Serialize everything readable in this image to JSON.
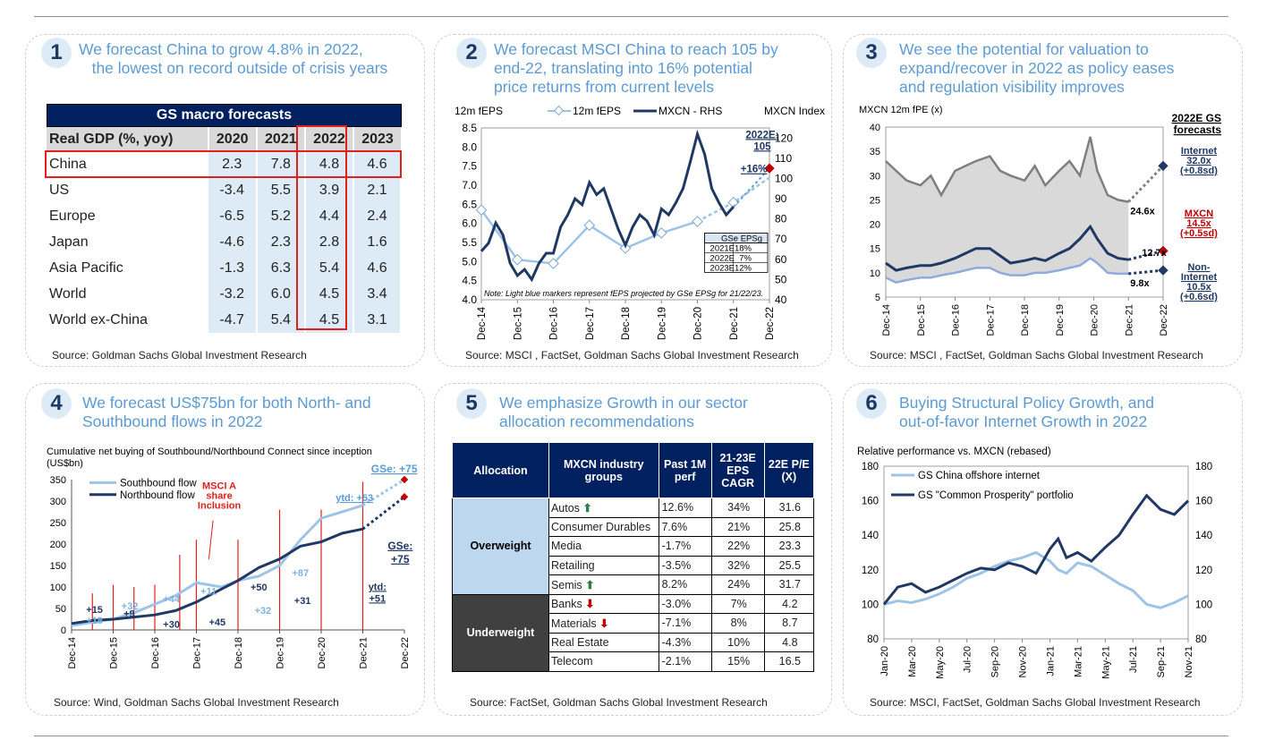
{
  "panels": [
    {
      "num": "1",
      "title": "We forecast China to grow 4.8% in 2022,\n   the lowest on record outside of crisis years",
      "source": "Source: Goldman Sachs Global Investment Research"
    },
    {
      "num": "2",
      "title": "We forecast MSCI China to reach 105 by\nend-22, translating into 16% potential\nprice returns from current levels",
      "source": "Source: MSCI , FactSet, Goldman Sachs Global Investment Research"
    },
    {
      "num": "3",
      "title": "We see the potential for valuation to\nexpand/recover in 2022 as policy eases\nand regulation visibility improves",
      "source": "Source: MSCI , FactSet, Goldman Sachs Global Investment Research"
    },
    {
      "num": "4",
      "title": "We forecast US$75bn for both North- and\nSouthbound flows in 2022",
      "source": "Source: Wind, Goldman Sachs Global Investment Research"
    },
    {
      "num": "5",
      "title": "We emphasize Growth in our sector\nallocation recommendations",
      "source": "Source: FactSet, Goldman Sachs Global Investment Research"
    },
    {
      "num": "6",
      "title": "Buying Structural Policy Growth, and\nout-of-favor Internet Growth in 2022",
      "source": "Source: MSCI, FactSet, Goldman Sachs Global Investment Research"
    }
  ],
  "macro": {
    "title": "GS macro forecasts",
    "header": [
      "Real GDP (%, yoy)",
      "2020",
      "2021",
      "2022",
      "2023"
    ],
    "rows": [
      [
        "China",
        "2.3",
        "7.8",
        "4.8",
        "4.6"
      ],
      [
        "US",
        "-3.4",
        "5.5",
        "3.9",
        "2.1"
      ],
      [
        "Europe",
        "-6.5",
        "5.2",
        "4.4",
        "2.4"
      ],
      [
        "Japan",
        "-4.6",
        "2.3",
        "2.8",
        "1.6"
      ],
      [
        "Asia Pacific",
        "-1.3",
        "6.3",
        "5.4",
        "4.6"
      ],
      [
        "World",
        "-3.2",
        "6.0",
        "4.5",
        "3.4"
      ],
      [
        "World ex-China",
        "-4.7",
        "5.4",
        "4.5",
        "3.1"
      ]
    ]
  },
  "sector": {
    "headers": [
      "Allocation",
      "MXCN industry groups",
      "Past 1M perf",
      "21-23E EPS CAGR",
      "22E P/E (X)"
    ],
    "overweight_label": "Overweight",
    "underweight_label": "Underweight",
    "overweight": [
      {
        "name": "Autos",
        "arrow": "up",
        "perf": "12.6%",
        "cagr": "34%",
        "pe": "31.6"
      },
      {
        "name": "Consumer Durables",
        "arrow": "",
        "perf": "7.6%",
        "cagr": "21%",
        "pe": "25.8"
      },
      {
        "name": "Media",
        "arrow": "",
        "perf": "-1.7%",
        "cagr": "22%",
        "pe": "23.3"
      },
      {
        "name": "Retailing",
        "arrow": "",
        "perf": "-3.5%",
        "cagr": "32%",
        "pe": "25.5"
      },
      {
        "name": "Semis",
        "arrow": "up",
        "perf": "8.2%",
        "cagr": "24%",
        "pe": "31.7"
      }
    ],
    "underweight": [
      {
        "name": "Banks",
        "arrow": "down",
        "perf": "-3.0%",
        "cagr": "7%",
        "pe": "4.2"
      },
      {
        "name": "Materials",
        "arrow": "down",
        "perf": "-7.1%",
        "cagr": "8%",
        "pe": "8.7"
      },
      {
        "name": "Real Estate",
        "arrow": "",
        "perf": "-4.3%",
        "cagr": "10%",
        "pe": "4.8"
      },
      {
        "name": "Telecom",
        "arrow": "",
        "perf": "-2.1%",
        "cagr": "15%",
        "pe": "16.5"
      }
    ]
  },
  "chart_data": [
    {
      "id": "chart2",
      "type": "line",
      "x_ticks": [
        "Dec-14",
        "Dec-15",
        "Dec-16",
        "Dec-17",
        "Dec-18",
        "Dec-19",
        "Dec-20",
        "Dec-21",
        "Dec-22"
      ],
      "ylabel_left": "12m fEPS",
      "ylabel_right": "MXCN Index",
      "ylim_left": [
        4.0,
        8.5
      ],
      "yticks_left": [
        "4.0",
        "4.5",
        "5.0",
        "5.5",
        "6.0",
        "6.5",
        "7.0",
        "7.5",
        "8.0",
        "8.5"
      ],
      "ylim_right": [
        40,
        125
      ],
      "yticks_right": [
        "40",
        "50",
        "60",
        "70",
        "80",
        "90",
        "100",
        "110",
        "120"
      ],
      "series": [
        {
          "name": "12m fEPS",
          "color": "#9dc3e6",
          "axis": "left",
          "x": [
            0,
            1,
            2,
            3,
            4,
            5,
            6,
            7,
            8
          ],
          "values": [
            6.35,
            5.05,
            4.95,
            5.95,
            5.35,
            5.75,
            6.05,
            6.55,
            7.2
          ]
        },
        {
          "name": "MXCN - RHS",
          "color": "#1f3864",
          "axis": "right",
          "x": [
            0,
            0.2,
            0.4,
            0.6,
            0.8,
            1.0,
            1.2,
            1.4,
            1.6,
            1.8,
            2.0,
            2.2,
            2.4,
            2.6,
            2.8,
            3.0,
            3.2,
            3.4,
            3.6,
            3.8,
            4.0,
            4.2,
            4.4,
            4.6,
            4.8,
            5.0,
            5.2,
            5.4,
            5.6,
            5.8,
            6.0,
            6.2,
            6.4,
            6.6,
            6.8,
            7.0
          ],
          "values": [
            64,
            68,
            78,
            72,
            58,
            52,
            55,
            50,
            58,
            63,
            63,
            76,
            82,
            90,
            87,
            98,
            92,
            95,
            85,
            75,
            67,
            76,
            82,
            79,
            72,
            85,
            82,
            88,
            95,
            108,
            122,
            112,
            95,
            88,
            82,
            86
          ]
        }
      ],
      "projection": {
        "from": 86,
        "to": 105,
        "label_pct": "+16%",
        "label": "2022E:\n105"
      },
      "legend_table": {
        "header": "GSe EPSg",
        "rows": [
          [
            "2021E",
            "18%"
          ],
          [
            "2022E",
            "7%"
          ],
          [
            "2023E",
            "12%"
          ]
        ]
      },
      "note": "Note: Light blue markers represent fEPS projected by GSe EPSg for 21/22/23."
    },
    {
      "id": "chart3",
      "type": "area",
      "title": "MXCN 12m fPE (x)",
      "x_ticks": [
        "Dec-14",
        "Dec-15",
        "Dec-16",
        "Dec-17",
        "Dec-18",
        "Dec-19",
        "Dec-20",
        "Dec-21",
        "Dec-22"
      ],
      "ylim": [
        5,
        40
      ],
      "yticks": [
        "5",
        "10",
        "15",
        "20",
        "25",
        "30",
        "35",
        "40"
      ],
      "series": [
        {
          "name": "Internet",
          "color": "#7f7f7f",
          "x": [
            0,
            0.3,
            0.6,
            1.0,
            1.3,
            1.6,
            2.0,
            2.3,
            2.6,
            3.0,
            3.3,
            3.6,
            4.0,
            4.3,
            4.6,
            5.0,
            5.3,
            5.6,
            5.9,
            6.1,
            6.4,
            6.7,
            7.0
          ],
          "values": [
            33,
            31,
            29,
            28,
            30,
            26,
            31,
            32,
            33,
            34,
            31,
            30,
            29,
            32,
            28,
            31,
            33,
            30,
            38,
            31,
            26,
            25,
            24.6
          ]
        },
        {
          "name": "MXCN",
          "color": "#1f3864",
          "x": [
            0,
            0.3,
            0.6,
            1.0,
            1.3,
            1.6,
            2.0,
            2.3,
            2.6,
            3.0,
            3.3,
            3.6,
            4.0,
            4.3,
            4.6,
            5.0,
            5.3,
            5.6,
            5.9,
            6.1,
            6.4,
            6.7,
            7.0
          ],
          "values": [
            12,
            10.5,
            11,
            11.5,
            11.5,
            12,
            13,
            14,
            15,
            15,
            13.5,
            12,
            12.5,
            13,
            12.5,
            14,
            15,
            17,
            19.5,
            17,
            14,
            13,
            12.7
          ]
        },
        {
          "name": "Non-Internet",
          "color": "#8faadc",
          "x": [
            0,
            0.3,
            0.6,
            1.0,
            1.3,
            1.6,
            2.0,
            2.3,
            2.6,
            3.0,
            3.3,
            3.6,
            4.0,
            4.3,
            4.6,
            5.0,
            5.3,
            5.6,
            5.9,
            6.1,
            6.4,
            6.7,
            7.0
          ],
          "values": [
            9,
            8,
            8.5,
            9,
            9,
            9.5,
            10,
            10.5,
            11,
            11,
            10,
            9.5,
            9.5,
            10,
            10,
            10.5,
            11,
            11.5,
            13,
            12,
            10,
            9.8,
            9.8
          ]
        }
      ],
      "end_labels": [
        "24.6x",
        "12.7x",
        "9.8x"
      ],
      "forecast_title": "2022E GS\nforecasts",
      "forecasts": [
        {
          "name": "Internet",
          "value": "32.0x",
          "sd": "(+0.8sd)",
          "color": "#1f3864"
        },
        {
          "name": "MXCN",
          "value": "14.5x",
          "sd": "(+0.5sd)",
          "color": "#c00000"
        },
        {
          "name": "Non-\nInternet",
          "value": "10.5x",
          "sd": "(+0.6sd)",
          "color": "#1f3864"
        }
      ],
      "forecast_values": [
        32.0,
        14.5,
        10.5
      ]
    },
    {
      "id": "chart4",
      "type": "line",
      "title": "Cumulative net buying of Southbound/Northbound Connect since inception\n(US$bn)",
      "x_ticks": [
        "Dec-14",
        "Dec-15",
        "Dec-16",
        "Dec-17",
        "Dec-18",
        "Dec-19",
        "Dec-20",
        "Dec-21",
        "Dec-22"
      ],
      "ylim": [
        0,
        350
      ],
      "yticks": [
        "0",
        "50",
        "100",
        "150",
        "200",
        "250",
        "300",
        "350"
      ],
      "series": [
        {
          "name": "Southbound flow",
          "color": "#9dc3e6",
          "x": [
            0,
            0.5,
            1,
            1.5,
            2,
            2.5,
            3,
            3.3,
            3.6,
            4,
            4.5,
            5,
            5.5,
            6,
            6.5,
            7
          ],
          "values": [
            10,
            18,
            25,
            40,
            60,
            80,
            110,
            105,
            100,
            115,
            125,
            150,
            210,
            260,
            275,
            290
          ]
        },
        {
          "name": "Northbound flow",
          "color": "#1f3864",
          "x": [
            0,
            0.5,
            1,
            1.5,
            2,
            2.5,
            3,
            3.5,
            4,
            4.5,
            5,
            5.5,
            6,
            6.5,
            7
          ],
          "values": [
            15,
            22,
            25,
            30,
            35,
            45,
            65,
            90,
            115,
            145,
            165,
            195,
            205,
            225,
            235
          ]
        }
      ],
      "projections": [
        {
          "from": 290,
          "to": 350,
          "color": "#9dc3e6"
        },
        {
          "from": 235,
          "to": 310,
          "color": "#1f3864"
        }
      ],
      "annotations": [
        "+15",
        "+18",
        "+32",
        "+9",
        "+44",
        "+30",
        "+11",
        "+45",
        "+50",
        "+32",
        "+31",
        "+87",
        "ytd: +53",
        "ytd:\n+51",
        "GSe: +75",
        "GSe:\n+75",
        "MSCI A\nshare\nInclusion"
      ]
    },
    {
      "id": "chart6",
      "type": "line",
      "title": "Relative performance vs. MXCN (rebased)",
      "x_ticks": [
        "Jan-20",
        "Mar-20",
        "May-20",
        "Jul-20",
        "Sep-20",
        "Nov-20",
        "Jan-21",
        "Mar-21",
        "May-21",
        "Jul-21",
        "Sep-21",
        "Nov-21"
      ],
      "ylim": [
        80,
        180
      ],
      "yticks": [
        "80",
        "100",
        "120",
        "140",
        "160",
        "180"
      ],
      "series": [
        {
          "name": "GS China offshore internet",
          "color": "#9dc3e6",
          "x": [
            0,
            0.5,
            1,
            1.5,
            2,
            2.5,
            3,
            3.5,
            4,
            4.5,
            5,
            5.5,
            6,
            6.3,
            6.6,
            7,
            7.5,
            8,
            8.5,
            9,
            9.5,
            10,
            10.5,
            11
          ],
          "values": [
            100,
            102,
            101,
            103,
            106,
            110,
            115,
            118,
            122,
            125,
            127,
            130,
            125,
            120,
            118,
            124,
            122,
            117,
            112,
            108,
            100,
            98,
            101,
            105
          ]
        },
        {
          "name": "GS \"Common Prosperity\" portfolio",
          "color": "#1f3864",
          "x": [
            0,
            0.5,
            1,
            1.5,
            2,
            2.5,
            3,
            3.5,
            4,
            4.5,
            5,
            5.5,
            6,
            6.3,
            6.6,
            7,
            7.5,
            8,
            8.5,
            9,
            9.5,
            10,
            10.5,
            11
          ],
          "values": [
            100,
            110,
            112,
            107,
            110,
            114,
            118,
            121,
            120,
            124,
            122,
            118,
            132,
            138,
            127,
            130,
            125,
            133,
            140,
            152,
            163,
            155,
            152,
            160
          ]
        }
      ]
    }
  ]
}
